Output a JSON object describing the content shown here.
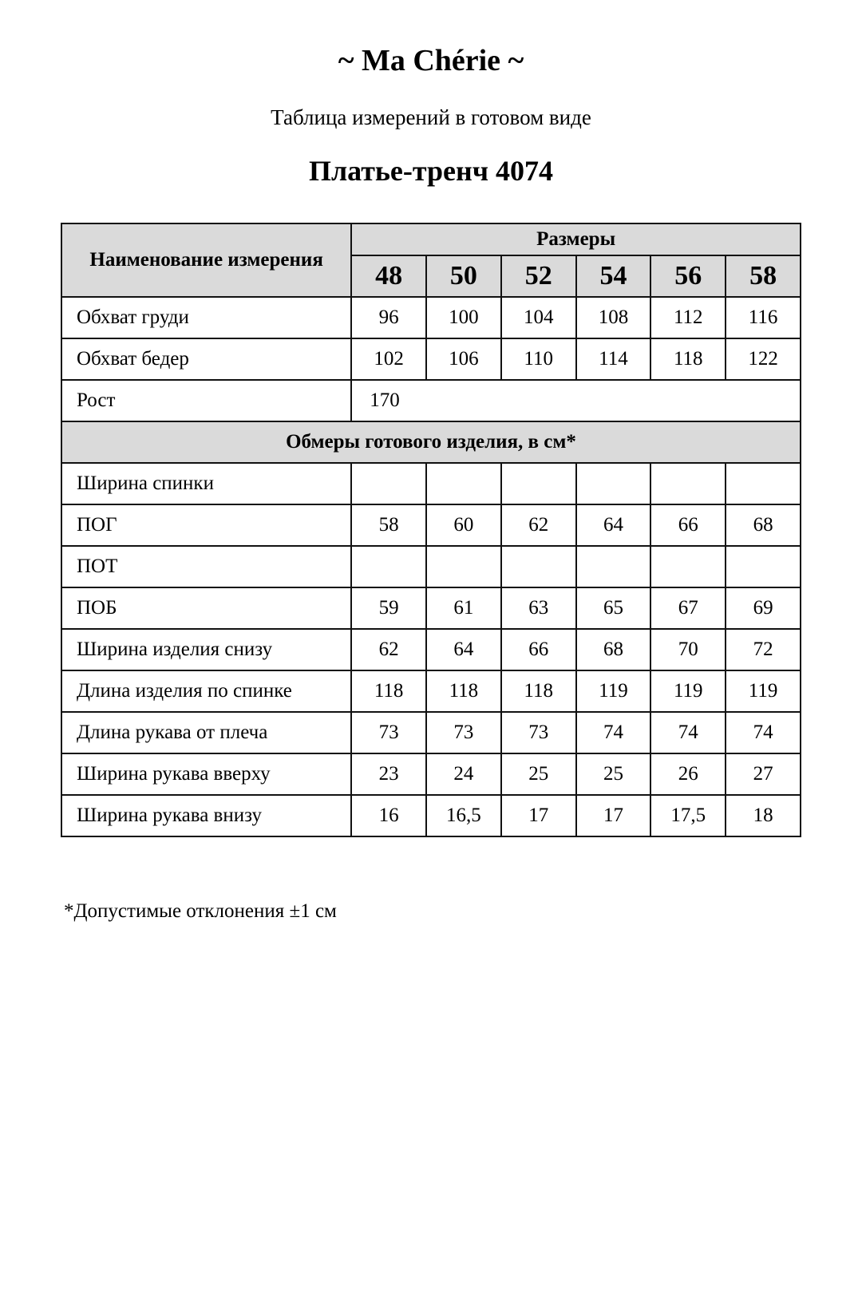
{
  "brand": "~ Ma Chérie ~",
  "subtitle": "Таблица измерений в готовом виде",
  "product": "Платье-тренч 4074",
  "table": {
    "name_header": "Наименование измерения",
    "sizes_header": "Размеры",
    "sizes": [
      "48",
      "50",
      "52",
      "54",
      "56",
      "58"
    ],
    "body_rows": [
      {
        "name": "Обхват груди",
        "values": [
          "96",
          "100",
          "104",
          "108",
          "112",
          "116"
        ]
      },
      {
        "name": "Обхват бедер",
        "values": [
          "102",
          "106",
          "110",
          "114",
          "118",
          "122"
        ]
      }
    ],
    "height_row": {
      "name": "Рост",
      "value": "170"
    },
    "section_header": "Обмеры готового изделия, в см*",
    "garment_rows": [
      {
        "name": "Ширина спинки",
        "values": [
          "",
          "",
          "",
          "",
          "",
          ""
        ]
      },
      {
        "name": "ПОГ",
        "values": [
          "58",
          "60",
          "62",
          "64",
          "66",
          "68"
        ]
      },
      {
        "name": "ПОТ",
        "values": [
          "",
          "",
          "",
          "",
          "",
          ""
        ]
      },
      {
        "name": "ПОБ",
        "values": [
          "59",
          "61",
          "63",
          "65",
          "67",
          "69"
        ]
      },
      {
        "name": "Ширина изделия снизу",
        "values": [
          "62",
          "64",
          "66",
          "68",
          "70",
          "72"
        ]
      },
      {
        "name": "Длина изделия по спинке",
        "values": [
          "118",
          "118",
          "118",
          "119",
          "119",
          "119"
        ]
      },
      {
        "name": "Длина рукава от плеча",
        "values": [
          "73",
          "73",
          "73",
          "74",
          "74",
          "74"
        ]
      },
      {
        "name": "Ширина рукава вверху",
        "values": [
          "23",
          "24",
          "25",
          "25",
          "26",
          "27"
        ]
      },
      {
        "name": "Ширина рукава внизу",
        "values": [
          "16",
          "16,5",
          "17",
          "17",
          "17,5",
          "18"
        ]
      }
    ]
  },
  "footnote": "*Допустимые отклонения ±1 см",
  "colors": {
    "header_bg": "#dadada",
    "border": "#111111"
  }
}
